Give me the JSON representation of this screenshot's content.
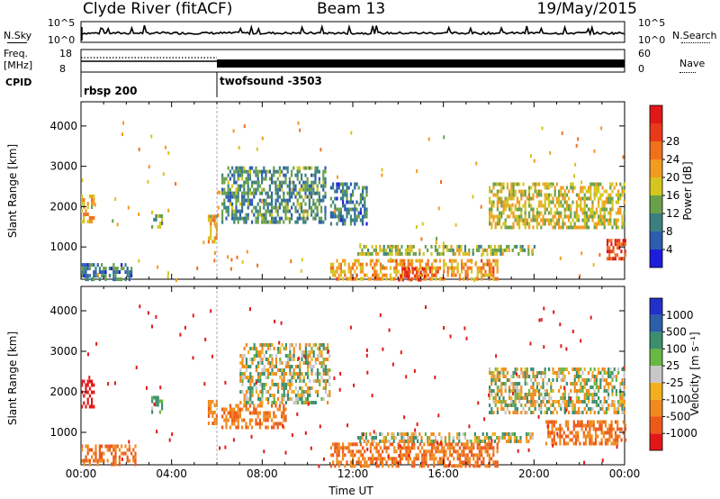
{
  "header": {
    "station": "Clyde River (fitACF)",
    "beam": "Beam 13",
    "date": "19/May/2015"
  },
  "noise_panel": {
    "left_label": "N.Sky",
    "right_label": "N.Search",
    "tick_top": "10^5",
    "tick_bottom": "10^0"
  },
  "freq_panel": {
    "left_label_1": "Freq.",
    "left_label_2": "[MHz]",
    "right_label": "Nave",
    "left_tick_top": "18",
    "left_tick_bottom": "8",
    "right_tick_top": "60",
    "right_tick_bottom": "0"
  },
  "cpid": {
    "label": "CPID",
    "modes": [
      "rbsp 200",
      "twofsound -3503"
    ]
  },
  "x_axis": {
    "label": "Time UT",
    "ticks": [
      "00:00",
      "04:00",
      "08:00",
      "12:00",
      "16:00",
      "20:00",
      "00:00"
    ]
  },
  "colors": {
    "power": [
      "#1d1ddc",
      "#2d5cb0",
      "#3b8080",
      "#6aa04a",
      "#d4c51f",
      "#f29b20",
      "#f0701c",
      "#e83a18",
      "#e0181a"
    ],
    "velocity": [
      "#2230c8",
      "#2b5fa8",
      "#3c8f6e",
      "#69b745",
      "#c8c8c8",
      "#f2b01c",
      "#f08a1e",
      "#ec5a1a",
      "#e21818"
    ]
  },
  "chart_data": [
    {
      "type": "heatmap",
      "title": "",
      "xlabel": "",
      "ylabel": "Slant Range [km]",
      "x_range_hours": [
        0,
        24
      ],
      "ylim": [
        200,
        4600
      ],
      "yticks": [
        "1000",
        "2000",
        "3000",
        "4000"
      ],
      "colorbar": {
        "label": "Power [dB]",
        "ticks": [
          "4",
          "8",
          "12",
          "16",
          "20",
          "24",
          "28"
        ]
      },
      "echo_regions": [
        {
          "t0": 0.0,
          "t1": 0.6,
          "r0": 1600,
          "r1": 2300,
          "value": 18
        },
        {
          "t0": 0.0,
          "t1": 2.2,
          "r0": 200,
          "r1": 600,
          "value": 8
        },
        {
          "t0": 3.1,
          "t1": 3.6,
          "r0": 1500,
          "r1": 1900,
          "value": 12
        },
        {
          "t0": 5.6,
          "t1": 6.0,
          "r0": 1100,
          "r1": 1800,
          "value": 18
        },
        {
          "t0": 6.2,
          "t1": 10.8,
          "r0": 1600,
          "r1": 3000,
          "value": 10
        },
        {
          "t0": 11.0,
          "t1": 12.6,
          "r0": 1600,
          "r1": 2600,
          "value": 8
        },
        {
          "t0": 11.0,
          "t1": 18.4,
          "r0": 200,
          "r1": 700,
          "value": 20
        },
        {
          "t0": 14.0,
          "t1": 15.2,
          "r0": 200,
          "r1": 500,
          "value": 28
        },
        {
          "t0": 12.2,
          "t1": 20.0,
          "r0": 850,
          "r1": 1050,
          "value": 14
        },
        {
          "t0": 18.0,
          "t1": 24.0,
          "r0": 1500,
          "r1": 2600,
          "value": 16
        },
        {
          "t0": 23.2,
          "t1": 24.0,
          "r0": 700,
          "r1": 1200,
          "value": 26
        }
      ]
    },
    {
      "type": "heatmap",
      "title": "",
      "xlabel": "Time UT",
      "ylabel": "Slant Range [km]",
      "x_range_hours": [
        0,
        24
      ],
      "ylim": [
        200,
        4600
      ],
      "yticks": [
        "1000",
        "2000",
        "3000",
        "4000"
      ],
      "colorbar": {
        "label": "Velocity [m s⁻¹]",
        "ticks": [
          "1000",
          "500",
          "100",
          "25",
          "-25",
          "-100",
          "-500",
          "-1000"
        ]
      },
      "echo_regions": [
        {
          "t0": 0.0,
          "t1": 0.6,
          "r0": 1600,
          "r1": 2300,
          "value": -900
        },
        {
          "t0": 0.0,
          "t1": 2.4,
          "r0": 200,
          "r1": 700,
          "value": -300
        },
        {
          "t0": 3.1,
          "t1": 3.6,
          "r0": 1500,
          "r1": 1900,
          "value": 150
        },
        {
          "t0": 5.6,
          "t1": 6.0,
          "r0": 1200,
          "r1": 1800,
          "value": -200
        },
        {
          "t0": 6.2,
          "t1": 9.0,
          "r0": 1100,
          "r1": 1700,
          "value": -300
        },
        {
          "t0": 7.0,
          "t1": 11.0,
          "r0": 1700,
          "r1": 3200,
          "value": 0
        },
        {
          "t0": 11.0,
          "t1": 18.4,
          "r0": 200,
          "r1": 750,
          "value": -300
        },
        {
          "t0": 12.2,
          "t1": 20.0,
          "r0": 800,
          "r1": 1000,
          "value": 0
        },
        {
          "t0": 18.0,
          "t1": 24.0,
          "r0": 1500,
          "r1": 2600,
          "value": 0
        },
        {
          "t0": 20.5,
          "t1": 24.0,
          "r0": 700,
          "r1": 1300,
          "value": -300
        }
      ]
    }
  ]
}
